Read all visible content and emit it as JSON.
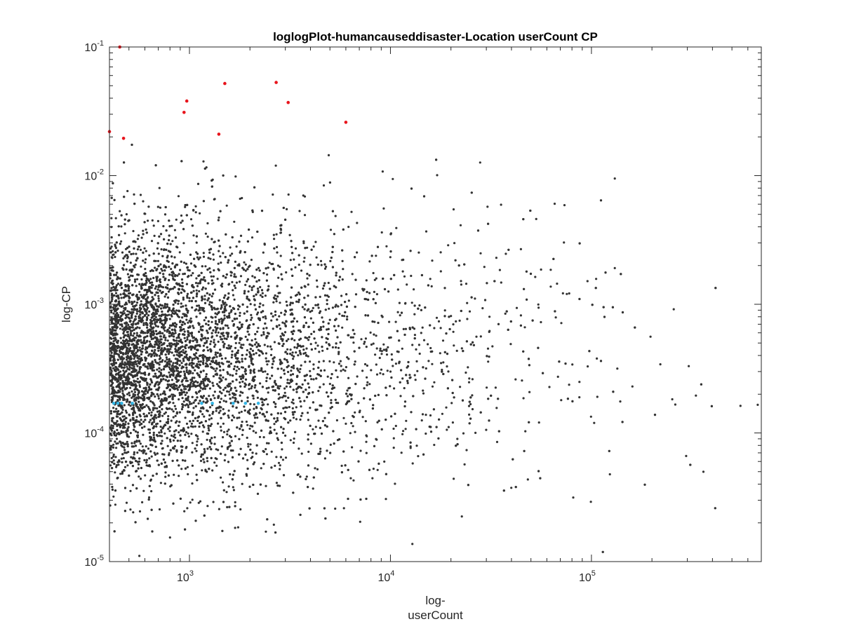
{
  "chart_data": {
    "type": "scatter",
    "title": "loglogPlot-humancauseddisaster-Location userCount CP",
    "xlabel_lines": [
      "log-",
      "userCount"
    ],
    "ylabel": "log-CP",
    "x_scale": "log",
    "y_scale": "log",
    "xlim": [
      400,
      700000
    ],
    "ylim": [
      1e-05,
      0.1
    ],
    "grid": false,
    "legend": "none",
    "x_ticks": [
      {
        "value": 1000,
        "base": "10",
        "exp": "3"
      },
      {
        "value": 10000,
        "base": "10",
        "exp": "4"
      },
      {
        "value": 100000,
        "base": "10",
        "exp": "5"
      }
    ],
    "y_ticks": [
      {
        "value": 1e-05,
        "base": "10",
        "exp": "-5"
      },
      {
        "value": 0.0001,
        "base": "10",
        "exp": "-4"
      },
      {
        "value": 0.001,
        "base": "10",
        "exp": "-3"
      },
      {
        "value": 0.01,
        "base": "10",
        "exp": "-2"
      },
      {
        "value": 0.1,
        "base": "10",
        "exp": "-1"
      }
    ],
    "colors": {
      "main": "#333333",
      "outlier": "#e8141c",
      "baseline": "#35b6e6",
      "axis": "#262626"
    },
    "series": [
      {
        "role": "main",
        "color": "#333333",
        "point_count": 7000,
        "distribution": {
          "logx_mode": 2.6,
          "logx_max": 5.85,
          "logy_center": -3.4,
          "logy_spread": 0.45
        }
      },
      {
        "role": "outlier",
        "color": "#e8141c",
        "points": [
          [
            400,
            0.022
          ],
          [
            450,
            0.1
          ],
          [
            470,
            0.0195
          ],
          [
            940,
            0.031
          ],
          [
            970,
            0.038
          ],
          [
            1400,
            0.021
          ],
          [
            1500,
            0.052
          ],
          [
            2700,
            0.053
          ],
          [
            3100,
            0.037
          ],
          [
            6000,
            0.026
          ]
        ]
      },
      {
        "role": "baseline",
        "color": "#35b6e6",
        "points": [
          [
            420,
            0.00017
          ],
          [
            440,
            0.00017
          ],
          [
            460,
            0.00017
          ],
          [
            520,
            0.00017
          ],
          [
            1150,
            0.00017
          ],
          [
            1300,
            0.00017
          ],
          [
            1650,
            0.00017
          ],
          [
            1900,
            0.00017
          ],
          [
            2200,
            0.00017
          ]
        ]
      }
    ]
  }
}
